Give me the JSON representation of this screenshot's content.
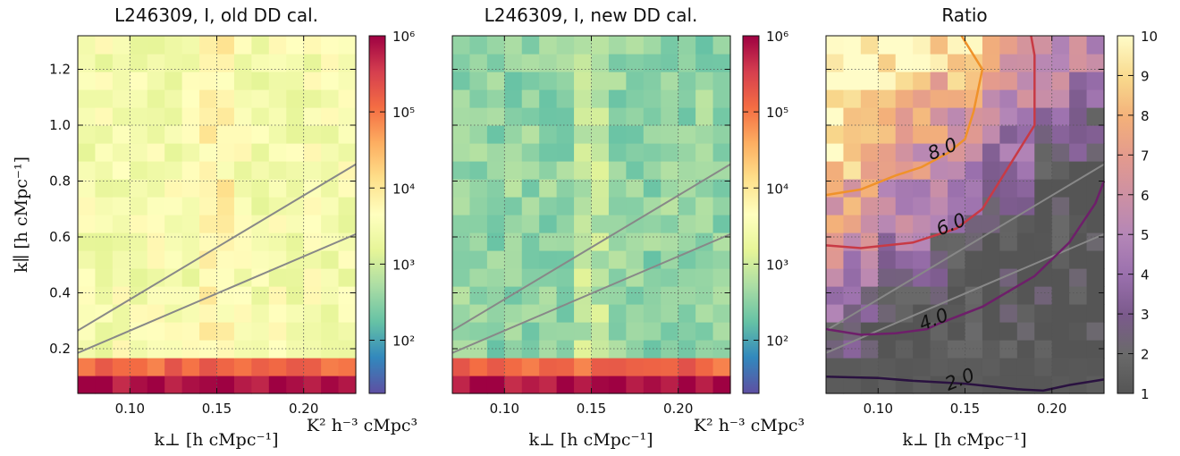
{
  "chart_data": [
    {
      "type": "heatmap",
      "title": "L246309, I, old DD cal.",
      "xlabel": "k⊥ [h cMpc⁻¹]",
      "ylabel": "k∥ [h cMpc⁻¹]",
      "xlim": [
        0.07,
        0.23
      ],
      "ylim": [
        0.04,
        1.32
      ],
      "x_ticks": [
        "0.10",
        "0.15",
        "0.20"
      ],
      "y_ticks": [
        "0.2",
        "0.4",
        "0.6",
        "0.8",
        "1.0",
        "1.2"
      ],
      "grid": true,
      "colorscale": "log",
      "colorbar_range": [
        20,
        1000000
      ],
      "colorbar_ticks": [
        "10²",
        "10³",
        "10⁴",
        "10⁵",
        "10⁶"
      ],
      "colorbar_label": "K² h⁻³ cMpc³",
      "typical_value": 3000,
      "low_k_par_values": [
        1000000,
        150000
      ],
      "wedge_lines": [
        {
          "x": [
            0.07,
            0.23
          ],
          "y": [
            0.265,
            0.86
          ]
        },
        {
          "x": [
            0.07,
            0.23
          ],
          "y": [
            0.185,
            0.61
          ]
        }
      ]
    },
    {
      "type": "heatmap",
      "title": "L246309, I, new DD cal.",
      "xlabel": "k⊥ [h cMpc⁻¹]",
      "ylabel": "",
      "xlim": [
        0.07,
        0.23
      ],
      "ylim": [
        0.04,
        1.32
      ],
      "x_ticks": [
        "0.10",
        "0.15",
        "0.20"
      ],
      "grid": true,
      "colorscale": "log",
      "colorbar_range": [
        20,
        1000000
      ],
      "colorbar_ticks": [
        "10²",
        "10³",
        "10⁴",
        "10⁵",
        "10⁶"
      ],
      "colorbar_label": "K² h⁻³ cMpc³",
      "typical_value": 350,
      "low_k_par_values": [
        1000000,
        150000
      ],
      "wedge_lines": [
        {
          "x": [
            0.07,
            0.23
          ],
          "y": [
            0.265,
            0.86
          ]
        },
        {
          "x": [
            0.07,
            0.23
          ],
          "y": [
            0.185,
            0.61
          ]
        }
      ]
    },
    {
      "type": "heatmap",
      "title": "Ratio",
      "xlabel": "k⊥ [h cMpc⁻¹]",
      "ylabel": "",
      "xlim": [
        0.07,
        0.23
      ],
      "ylim": [
        0.04,
        1.32
      ],
      "x_ticks": [
        "0.10",
        "0.15",
        "0.20"
      ],
      "grid": true,
      "colorbar_range": [
        1,
        10
      ],
      "colorbar_ticks": [
        "1",
        "2",
        "3",
        "4",
        "5",
        "6",
        "7",
        "8",
        "9",
        "10"
      ],
      "wedge_lines": [
        {
          "x": [
            0.07,
            0.23
          ],
          "y": [
            0.265,
            0.86
          ]
        },
        {
          "x": [
            0.07,
            0.23
          ],
          "y": [
            0.185,
            0.61
          ]
        }
      ],
      "contours": [
        {
          "label": "2.0",
          "color": "#2a1240",
          "points": [
            [
              0.07,
              0.1
            ],
            [
              0.1,
              0.095
            ],
            [
              0.12,
              0.085
            ],
            [
              0.15,
              0.075
            ],
            [
              0.18,
              0.055
            ],
            [
              0.195,
              0.05
            ],
            [
              0.21,
              0.07
            ],
            [
              0.23,
              0.09
            ]
          ]
        },
        {
          "label": "4.0",
          "color": "#6e1f6a",
          "points": [
            [
              0.07,
              0.27
            ],
            [
              0.09,
              0.25
            ],
            [
              0.11,
              0.255
            ],
            [
              0.128,
              0.27
            ],
            [
              0.135,
              0.29
            ],
            [
              0.16,
              0.35
            ],
            [
              0.19,
              0.46
            ],
            [
              0.21,
              0.58
            ],
            [
              0.225,
              0.72
            ],
            [
              0.23,
              0.8
            ]
          ]
        },
        {
          "label": "6.0",
          "color": "#c83a45",
          "points": [
            [
              0.07,
              0.57
            ],
            [
              0.09,
              0.56
            ],
            [
              0.12,
              0.58
            ],
            [
              0.135,
              0.61
            ],
            [
              0.145,
              0.63
            ],
            [
              0.16,
              0.7
            ],
            [
              0.175,
              0.85
            ],
            [
              0.19,
              1.0
            ],
            [
              0.19,
              1.15
            ],
            [
              0.19,
              1.25
            ],
            [
              0.188,
              1.32
            ]
          ]
        },
        {
          "label": "8.0",
          "color": "#f0922a",
          "points": [
            [
              0.07,
              0.75
            ],
            [
              0.09,
              0.77
            ],
            [
              0.11,
              0.82
            ],
            [
              0.125,
              0.85
            ],
            [
              0.14,
              0.9
            ],
            [
              0.15,
              0.95
            ],
            [
              0.155,
              1.05
            ],
            [
              0.16,
              1.2
            ],
            [
              0.15,
              1.3
            ],
            [
              0.148,
              1.32
            ]
          ]
        }
      ]
    }
  ]
}
